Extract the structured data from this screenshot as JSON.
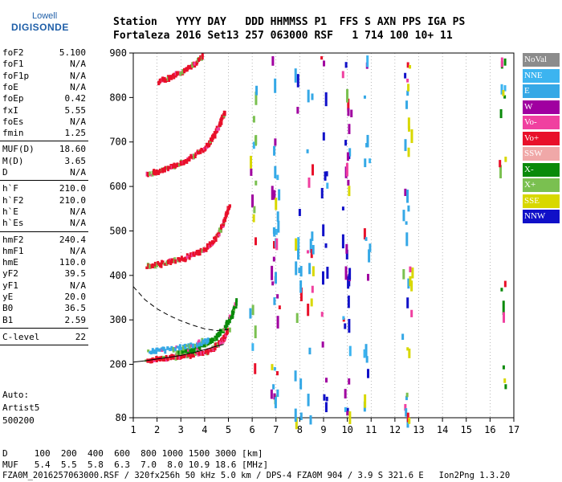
{
  "logo": {
    "line1": "Lowell",
    "line2": "DIGISONDE"
  },
  "header": {
    "line1": "Station   YYYY DAY   DDD HHMMSS P1  FFS S AXN PPS IGA PS",
    "line2": "Fortaleza 2016 Set13 257 063000 RSF   1 714 100 10+ 11"
  },
  "params_group1": [
    {
      "key": "foF2",
      "value": "5.100"
    },
    {
      "key": "foF1",
      "value": "N/A"
    },
    {
      "key": "foF1p",
      "value": "N/A"
    },
    {
      "key": "foE",
      "value": "N/A"
    },
    {
      "key": "foEp",
      "value": "0.42"
    },
    {
      "key": "fxI",
      "value": "5.55"
    },
    {
      "key": "foEs",
      "value": "N/A"
    },
    {
      "key": "fmin",
      "value": "1.25"
    }
  ],
  "params_group2": [
    {
      "key": "MUF(D)",
      "value": "18.60"
    },
    {
      "key": "M(D)",
      "value": "3.65"
    },
    {
      "key": "D",
      "value": "N/A"
    }
  ],
  "params_group3": [
    {
      "key": "h`F",
      "value": "210.0"
    },
    {
      "key": "h`F2",
      "value": "210.0"
    },
    {
      "key": "h`E",
      "value": "N/A"
    },
    {
      "key": "h`Es",
      "value": "N/A"
    }
  ],
  "params_group4": [
    {
      "key": "hmF2",
      "value": "240.4"
    },
    {
      "key": "hmF1",
      "value": "N/A"
    },
    {
      "key": "hmE",
      "value": "110.0"
    },
    {
      "key": "yF2",
      "value": "39.5"
    },
    {
      "key": "yF1",
      "value": "N/A"
    },
    {
      "key": "yE",
      "value": "20.0"
    },
    {
      "key": "B0",
      "value": "36.5"
    },
    {
      "key": "B1",
      "value": "2.59"
    }
  ],
  "clevel": {
    "key": "C-level",
    "value": "22"
  },
  "auto": {
    "line1": "Auto:",
    "line2": "Artist5",
    "line3": "500200"
  },
  "footer": {
    "d_row": "D     100  200  400  600  800 1000 1500 3000 [km]",
    "muf_row": "MUF   5.4  5.5  5.8  6.3  7.0  8.0 10.9 18.6 [MHz]",
    "file_row": "FZA0M_2016257063000.RSF / 320fx256h 50 kHz 5.0 km / DPS-4 FZA0M 904 / 3.9 S 321.6 E   Ion2Png 1.3.20"
  },
  "colors": {
    "NoVal": "#8c8c8c",
    "NNE": "#3cb4f0",
    "E": "#35a8e6",
    "W": "#a000a0",
    "Vo-": "#f040a0",
    "Vo+": "#e8102a",
    "SSW": "#f0a8a8",
    "X-": "#0a8a0a",
    "X+": "#7ac050",
    "SSE": "#d8d800",
    "NNW": "#1010c8"
  },
  "legend": [
    "NoVal",
    "NNE",
    "E",
    "W",
    "Vo-",
    "Vo+",
    "SSW",
    "X-",
    "X+",
    "SSE",
    "NNW"
  ],
  "chart_data": {
    "type": "scatter",
    "title": "",
    "xlabel": "",
    "ylabel": "",
    "xlim": [
      1,
      17
    ],
    "ylim": [
      80,
      900
    ],
    "x_ticks": [
      1,
      2,
      3,
      4,
      5,
      6,
      7,
      8,
      9,
      10,
      11,
      12,
      13,
      14,
      15,
      16,
      17
    ],
    "y_ticks": [
      80,
      200,
      300,
      400,
      500,
      600,
      700,
      800,
      900
    ],
    "traces": [
      {
        "name": "O-trace 1st hop",
        "color_key": "Vo+",
        "points": [
          [
            1.5,
            210
          ],
          [
            2,
            212
          ],
          [
            2.5,
            215
          ],
          [
            3,
            218
          ],
          [
            3.5,
            222
          ],
          [
            4,
            228
          ],
          [
            4.3,
            235
          ],
          [
            4.6,
            248
          ],
          [
            4.8,
            262
          ],
          [
            5.0,
            280
          ]
        ]
      },
      {
        "name": "O-trace 2nd hop",
        "color_key": "Vo+",
        "points": [
          [
            1.5,
            420
          ],
          [
            2,
            425
          ],
          [
            2.5,
            430
          ],
          [
            3,
            437
          ],
          [
            3.5,
            446
          ],
          [
            4,
            460
          ],
          [
            4.3,
            475
          ],
          [
            4.6,
            500
          ],
          [
            4.8,
            525
          ],
          [
            5.0,
            560
          ]
        ]
      },
      {
        "name": "O-trace 3rd hop",
        "color_key": "Vo+",
        "points": [
          [
            1.5,
            625
          ],
          [
            2,
            633
          ],
          [
            2.5,
            642
          ],
          [
            3,
            654
          ],
          [
            3.5,
            668
          ],
          [
            4,
            688
          ],
          [
            4.3,
            708
          ],
          [
            4.6,
            740
          ],
          [
            4.8,
            770
          ]
        ]
      },
      {
        "name": "O-trace 4th hop",
        "color_key": "Vo+",
        "points": [
          [
            2,
            835
          ],
          [
            2.5,
            845
          ],
          [
            3,
            858
          ],
          [
            3.5,
            875
          ],
          [
            3.9,
            895
          ]
        ]
      },
      {
        "name": "X-trace 1st hop",
        "color_key": "X-",
        "points": [
          [
            2.8,
            225
          ],
          [
            3.4,
            232
          ],
          [
            3.9,
            242
          ],
          [
            4.4,
            258
          ],
          [
            4.8,
            280
          ],
          [
            5.1,
            310
          ],
          [
            5.3,
            345
          ]
        ]
      },
      {
        "name": "E-region streaks",
        "color_key": "E",
        "points": [
          [
            1.6,
            228
          ],
          [
            2.2,
            232
          ],
          [
            3.0,
            238
          ],
          [
            3.6,
            245
          ],
          [
            4.1,
            255
          ]
        ]
      }
    ],
    "profile_curves": [
      {
        "name": "dashed",
        "style": "dashed",
        "points": [
          [
            1.0,
            375
          ],
          [
            1.5,
            345
          ],
          [
            2.0,
            325
          ],
          [
            2.5,
            310
          ],
          [
            3.0,
            298
          ],
          [
            3.5,
            288
          ],
          [
            4.0,
            280
          ],
          [
            4.5,
            276
          ],
          [
            5.0,
            278
          ]
        ]
      },
      {
        "name": "solid",
        "style": "solid",
        "points": [
          [
            1.0,
            205
          ],
          [
            1.5,
            208
          ],
          [
            2.0,
            212
          ],
          [
            2.5,
            216
          ],
          [
            3.0,
            220
          ],
          [
            3.5,
            226
          ],
          [
            4.0,
            233
          ],
          [
            4.5,
            241
          ],
          [
            4.8,
            245
          ]
        ]
      }
    ],
    "scatter_columns": [
      {
        "x": 6.0,
        "color_key": "X+"
      },
      {
        "x": 6.9,
        "color_key": "W"
      },
      {
        "x": 7.0,
        "color_key": "E"
      },
      {
        "x": 7.9,
        "color_key": "E"
      },
      {
        "x": 8.4,
        "color_key": "E"
      },
      {
        "x": 9.0,
        "color_key": "NNW"
      },
      {
        "x": 9.9,
        "color_key": "NNW"
      },
      {
        "x": 10.0,
        "color_key": "W"
      },
      {
        "x": 10.8,
        "color_key": "E"
      },
      {
        "x": 12.4,
        "color_key": "E"
      },
      {
        "x": 12.6,
        "color_key": "SSE"
      },
      {
        "x": 16.5,
        "color_key": "X-"
      }
    ]
  }
}
